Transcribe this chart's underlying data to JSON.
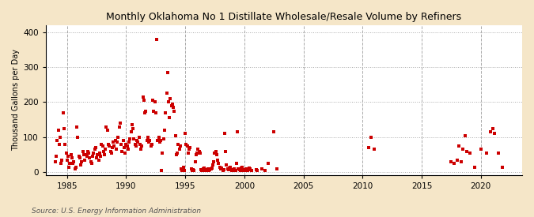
{
  "title": "Monthly Oklahoma No 1 Distillate Wholesale/Resale Volume by Refiners",
  "ylabel": "Thousand Gallons per Day",
  "source": "Source: U.S. Energy Information Administration",
  "fig_bg_color": "#f5e6c8",
  "plot_bg_color": "#ffffff",
  "dot_color": "#cc0000",
  "marker_size": 3.5,
  "xlim": [
    1983.2,
    2023.5
  ],
  "ylim": [
    -8,
    420
  ],
  "yticks": [
    0,
    100,
    200,
    300,
    400
  ],
  "xticks": [
    1985,
    1990,
    1995,
    2000,
    2005,
    2010,
    2015,
    2020
  ],
  "data": [
    [
      1984.0,
      30
    ],
    [
      1984.08,
      45
    ],
    [
      1984.17,
      90
    ],
    [
      1984.25,
      120
    ],
    [
      1984.33,
      80
    ],
    [
      1984.42,
      100
    ],
    [
      1984.5,
      25
    ],
    [
      1984.58,
      35
    ],
    [
      1984.67,
      170
    ],
    [
      1984.75,
      125
    ],
    [
      1984.83,
      80
    ],
    [
      1984.92,
      55
    ],
    [
      1985.0,
      35
    ],
    [
      1985.08,
      45
    ],
    [
      1985.17,
      15
    ],
    [
      1985.25,
      25
    ],
    [
      1985.33,
      50
    ],
    [
      1985.42,
      40
    ],
    [
      1985.5,
      25
    ],
    [
      1985.58,
      30
    ],
    [
      1985.67,
      10
    ],
    [
      1985.75,
      15
    ],
    [
      1985.83,
      130
    ],
    [
      1985.92,
      100
    ],
    [
      1986.0,
      45
    ],
    [
      1986.08,
      40
    ],
    [
      1986.17,
      20
    ],
    [
      1986.25,
      30
    ],
    [
      1986.33,
      60
    ],
    [
      1986.42,
      50
    ],
    [
      1986.5,
      35
    ],
    [
      1986.58,
      50
    ],
    [
      1986.67,
      45
    ],
    [
      1986.75,
      60
    ],
    [
      1986.83,
      55
    ],
    [
      1986.92,
      40
    ],
    [
      1987.0,
      30
    ],
    [
      1987.08,
      25
    ],
    [
      1987.17,
      45
    ],
    [
      1987.25,
      55
    ],
    [
      1987.33,
      65
    ],
    [
      1987.42,
      70
    ],
    [
      1987.5,
      40
    ],
    [
      1987.58,
      50
    ],
    [
      1987.67,
      35
    ],
    [
      1987.75,
      55
    ],
    [
      1987.83,
      45
    ],
    [
      1987.92,
      80
    ],
    [
      1988.0,
      75
    ],
    [
      1988.08,
      60
    ],
    [
      1988.17,
      50
    ],
    [
      1988.25,
      65
    ],
    [
      1988.33,
      130
    ],
    [
      1988.42,
      120
    ],
    [
      1988.5,
      80
    ],
    [
      1988.58,
      75
    ],
    [
      1988.67,
      60
    ],
    [
      1988.75,
      55
    ],
    [
      1988.83,
      70
    ],
    [
      1988.92,
      85
    ],
    [
      1989.0,
      75
    ],
    [
      1989.08,
      90
    ],
    [
      1989.17,
      65
    ],
    [
      1989.25,
      85
    ],
    [
      1989.33,
      100
    ],
    [
      1989.42,
      130
    ],
    [
      1989.5,
      140
    ],
    [
      1989.58,
      80
    ],
    [
      1989.67,
      60
    ],
    [
      1989.75,
      90
    ],
    [
      1989.83,
      70
    ],
    [
      1989.92,
      55
    ],
    [
      1990.0,
      80
    ],
    [
      1990.08,
      75
    ],
    [
      1990.17,
      65
    ],
    [
      1990.25,
      85
    ],
    [
      1990.33,
      95
    ],
    [
      1990.42,
      115
    ],
    [
      1990.5,
      135
    ],
    [
      1990.58,
      125
    ],
    [
      1990.67,
      95
    ],
    [
      1990.75,
      80
    ],
    [
      1990.83,
      75
    ],
    [
      1990.92,
      90
    ],
    [
      1991.0,
      85
    ],
    [
      1991.08,
      100
    ],
    [
      1991.17,
      80
    ],
    [
      1991.25,
      65
    ],
    [
      1991.33,
      75
    ],
    [
      1991.42,
      215
    ],
    [
      1991.5,
      205
    ],
    [
      1991.58,
      170
    ],
    [
      1991.67,
      175
    ],
    [
      1991.75,
      90
    ],
    [
      1991.83,
      100
    ],
    [
      1991.92,
      85
    ],
    [
      1992.0,
      90
    ],
    [
      1992.08,
      75
    ],
    [
      1992.17,
      80
    ],
    [
      1992.25,
      205
    ],
    [
      1992.33,
      175
    ],
    [
      1992.42,
      200
    ],
    [
      1992.5,
      170
    ],
    [
      1992.58,
      380
    ],
    [
      1992.67,
      90
    ],
    [
      1992.75,
      100
    ],
    [
      1992.83,
      85
    ],
    [
      1992.92,
      90
    ],
    [
      1993.0,
      5
    ],
    [
      1993.08,
      55
    ],
    [
      1993.17,
      95
    ],
    [
      1993.25,
      120
    ],
    [
      1993.33,
      170
    ],
    [
      1993.42,
      225
    ],
    [
      1993.5,
      285
    ],
    [
      1993.58,
      200
    ],
    [
      1993.67,
      155
    ],
    [
      1993.75,
      210
    ],
    [
      1993.83,
      190
    ],
    [
      1993.92,
      195
    ],
    [
      1994.0,
      185
    ],
    [
      1994.08,
      175
    ],
    [
      1994.17,
      105
    ],
    [
      1994.25,
      50
    ],
    [
      1994.33,
      55
    ],
    [
      1994.42,
      80
    ],
    [
      1994.5,
      65
    ],
    [
      1994.58,
      75
    ],
    [
      1994.67,
      10
    ],
    [
      1994.75,
      5
    ],
    [
      1994.83,
      15
    ],
    [
      1994.92,
      5
    ],
    [
      1995.0,
      110
    ],
    [
      1995.08,
      80
    ],
    [
      1995.17,
      75
    ],
    [
      1995.25,
      55
    ],
    [
      1995.33,
      65
    ],
    [
      1995.42,
      70
    ],
    [
      1995.5,
      10
    ],
    [
      1995.58,
      5
    ],
    [
      1995.67,
      8
    ],
    [
      1995.75,
      5
    ],
    [
      1995.83,
      30
    ],
    [
      1995.92,
      50
    ],
    [
      1996.0,
      55
    ],
    [
      1996.08,
      65
    ],
    [
      1996.17,
      60
    ],
    [
      1996.25,
      55
    ],
    [
      1996.33,
      8
    ],
    [
      1996.42,
      5
    ],
    [
      1996.5,
      10
    ],
    [
      1996.58,
      12
    ],
    [
      1996.67,
      5
    ],
    [
      1996.75,
      8
    ],
    [
      1996.83,
      5
    ],
    [
      1996.92,
      10
    ],
    [
      1997.0,
      5
    ],
    [
      1997.08,
      8
    ],
    [
      1997.17,
      10
    ],
    [
      1997.25,
      12
    ],
    [
      1997.33,
      20
    ],
    [
      1997.42,
      30
    ],
    [
      1997.5,
      55
    ],
    [
      1997.58,
      60
    ],
    [
      1997.67,
      50
    ],
    [
      1997.75,
      35
    ],
    [
      1997.83,
      25
    ],
    [
      1997.92,
      15
    ],
    [
      1998.0,
      10
    ],
    [
      1998.08,
      12
    ],
    [
      1998.17,
      5
    ],
    [
      1998.25,
      8
    ],
    [
      1998.33,
      110
    ],
    [
      1998.42,
      60
    ],
    [
      1998.5,
      20
    ],
    [
      1998.58,
      10
    ],
    [
      1998.67,
      8
    ],
    [
      1998.75,
      12
    ],
    [
      1998.83,
      15
    ],
    [
      1998.92,
      5
    ],
    [
      1999.0,
      8
    ],
    [
      1999.08,
      5
    ],
    [
      1999.17,
      10
    ],
    [
      1999.25,
      5
    ],
    [
      1999.33,
      25
    ],
    [
      1999.42,
      115
    ],
    [
      1999.5,
      10
    ],
    [
      1999.58,
      8
    ],
    [
      1999.67,
      5
    ],
    [
      1999.75,
      12
    ],
    [
      1999.83,
      15
    ],
    [
      1999.92,
      5
    ],
    [
      2000.0,
      8
    ],
    [
      2000.08,
      5
    ],
    [
      2000.17,
      10
    ],
    [
      2000.25,
      5
    ],
    [
      2000.33,
      8
    ],
    [
      2000.42,
      12
    ],
    [
      2000.5,
      10
    ],
    [
      2000.58,
      5
    ],
    [
      2001.0,
      8
    ],
    [
      2001.08,
      5
    ],
    [
      2001.5,
      10
    ],
    [
      2001.75,
      5
    ],
    [
      2002.0,
      25
    ],
    [
      2002.5,
      115
    ],
    [
      2002.75,
      10
    ],
    [
      2010.5,
      70
    ],
    [
      2010.75,
      100
    ],
    [
      2011.0,
      65
    ],
    [
      2017.5,
      30
    ],
    [
      2017.75,
      25
    ],
    [
      2018.0,
      35
    ],
    [
      2018.17,
      75
    ],
    [
      2018.33,
      30
    ],
    [
      2018.5,
      65
    ],
    [
      2018.67,
      105
    ],
    [
      2018.83,
      60
    ],
    [
      2019.08,
      55
    ],
    [
      2019.5,
      15
    ],
    [
      2020.0,
      65
    ],
    [
      2020.5,
      55
    ],
    [
      2020.83,
      115
    ],
    [
      2021.0,
      125
    ],
    [
      2021.17,
      110
    ],
    [
      2021.5,
      55
    ],
    [
      2021.83,
      15
    ]
  ]
}
